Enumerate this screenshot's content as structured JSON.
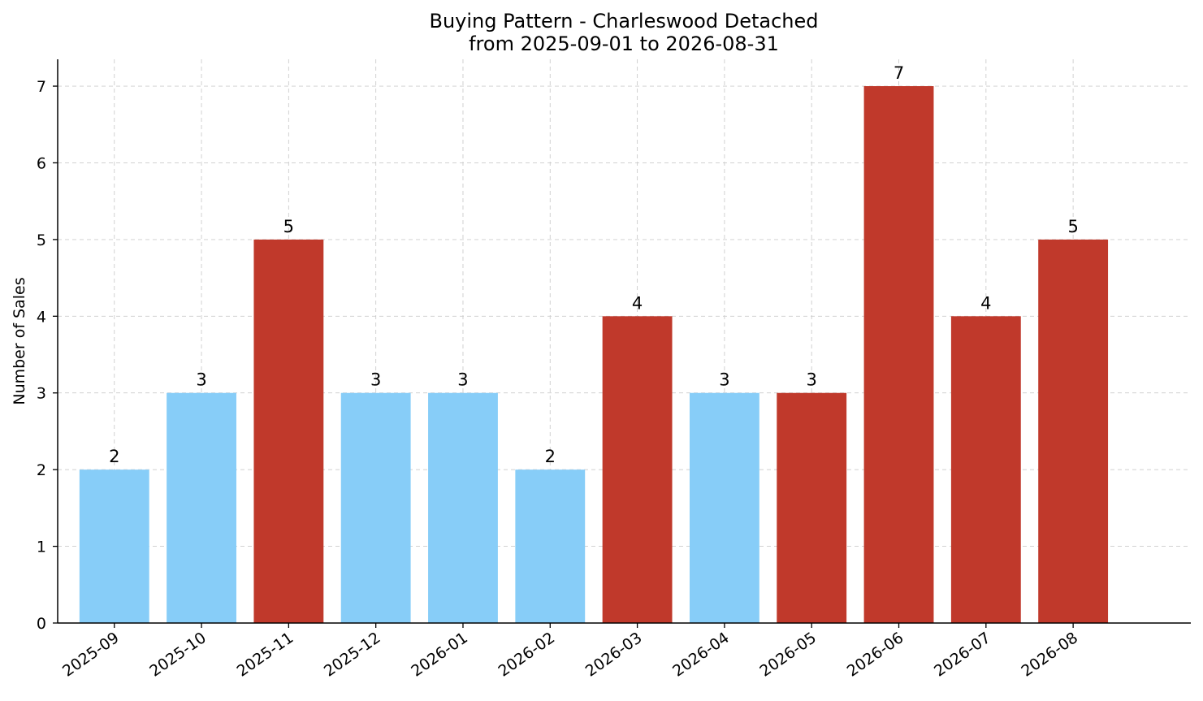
{
  "chart_data": {
    "type": "bar",
    "title": "Buying Pattern - Charleswood Detached",
    "subtitle": "from 2025-09-01 to 2026-08-31",
    "xlabel": "",
    "ylabel": "Number of Sales",
    "categories": [
      "2025-09",
      "2025-10",
      "2025-11",
      "2025-12",
      "2026-01",
      "2026-02",
      "2026-03",
      "2026-04",
      "2026-05",
      "2026-06",
      "2026-07",
      "2026-08"
    ],
    "values": [
      2,
      3,
      5,
      3,
      3,
      2,
      4,
      3,
      3,
      7,
      4,
      5
    ],
    "bar_colors": [
      "#87cdf8",
      "#87cdf8",
      "#c0392b",
      "#87cdf8",
      "#87cdf8",
      "#87cdf8",
      "#c0392b",
      "#87cdf8",
      "#c0392b",
      "#c0392b",
      "#c0392b",
      "#c0392b"
    ],
    "yticks": [
      "0",
      "1",
      "2",
      "3",
      "4",
      "5",
      "6",
      "7"
    ],
    "ylim": [
      0,
      7.35
    ],
    "grid": true,
    "data_labels": true
  }
}
